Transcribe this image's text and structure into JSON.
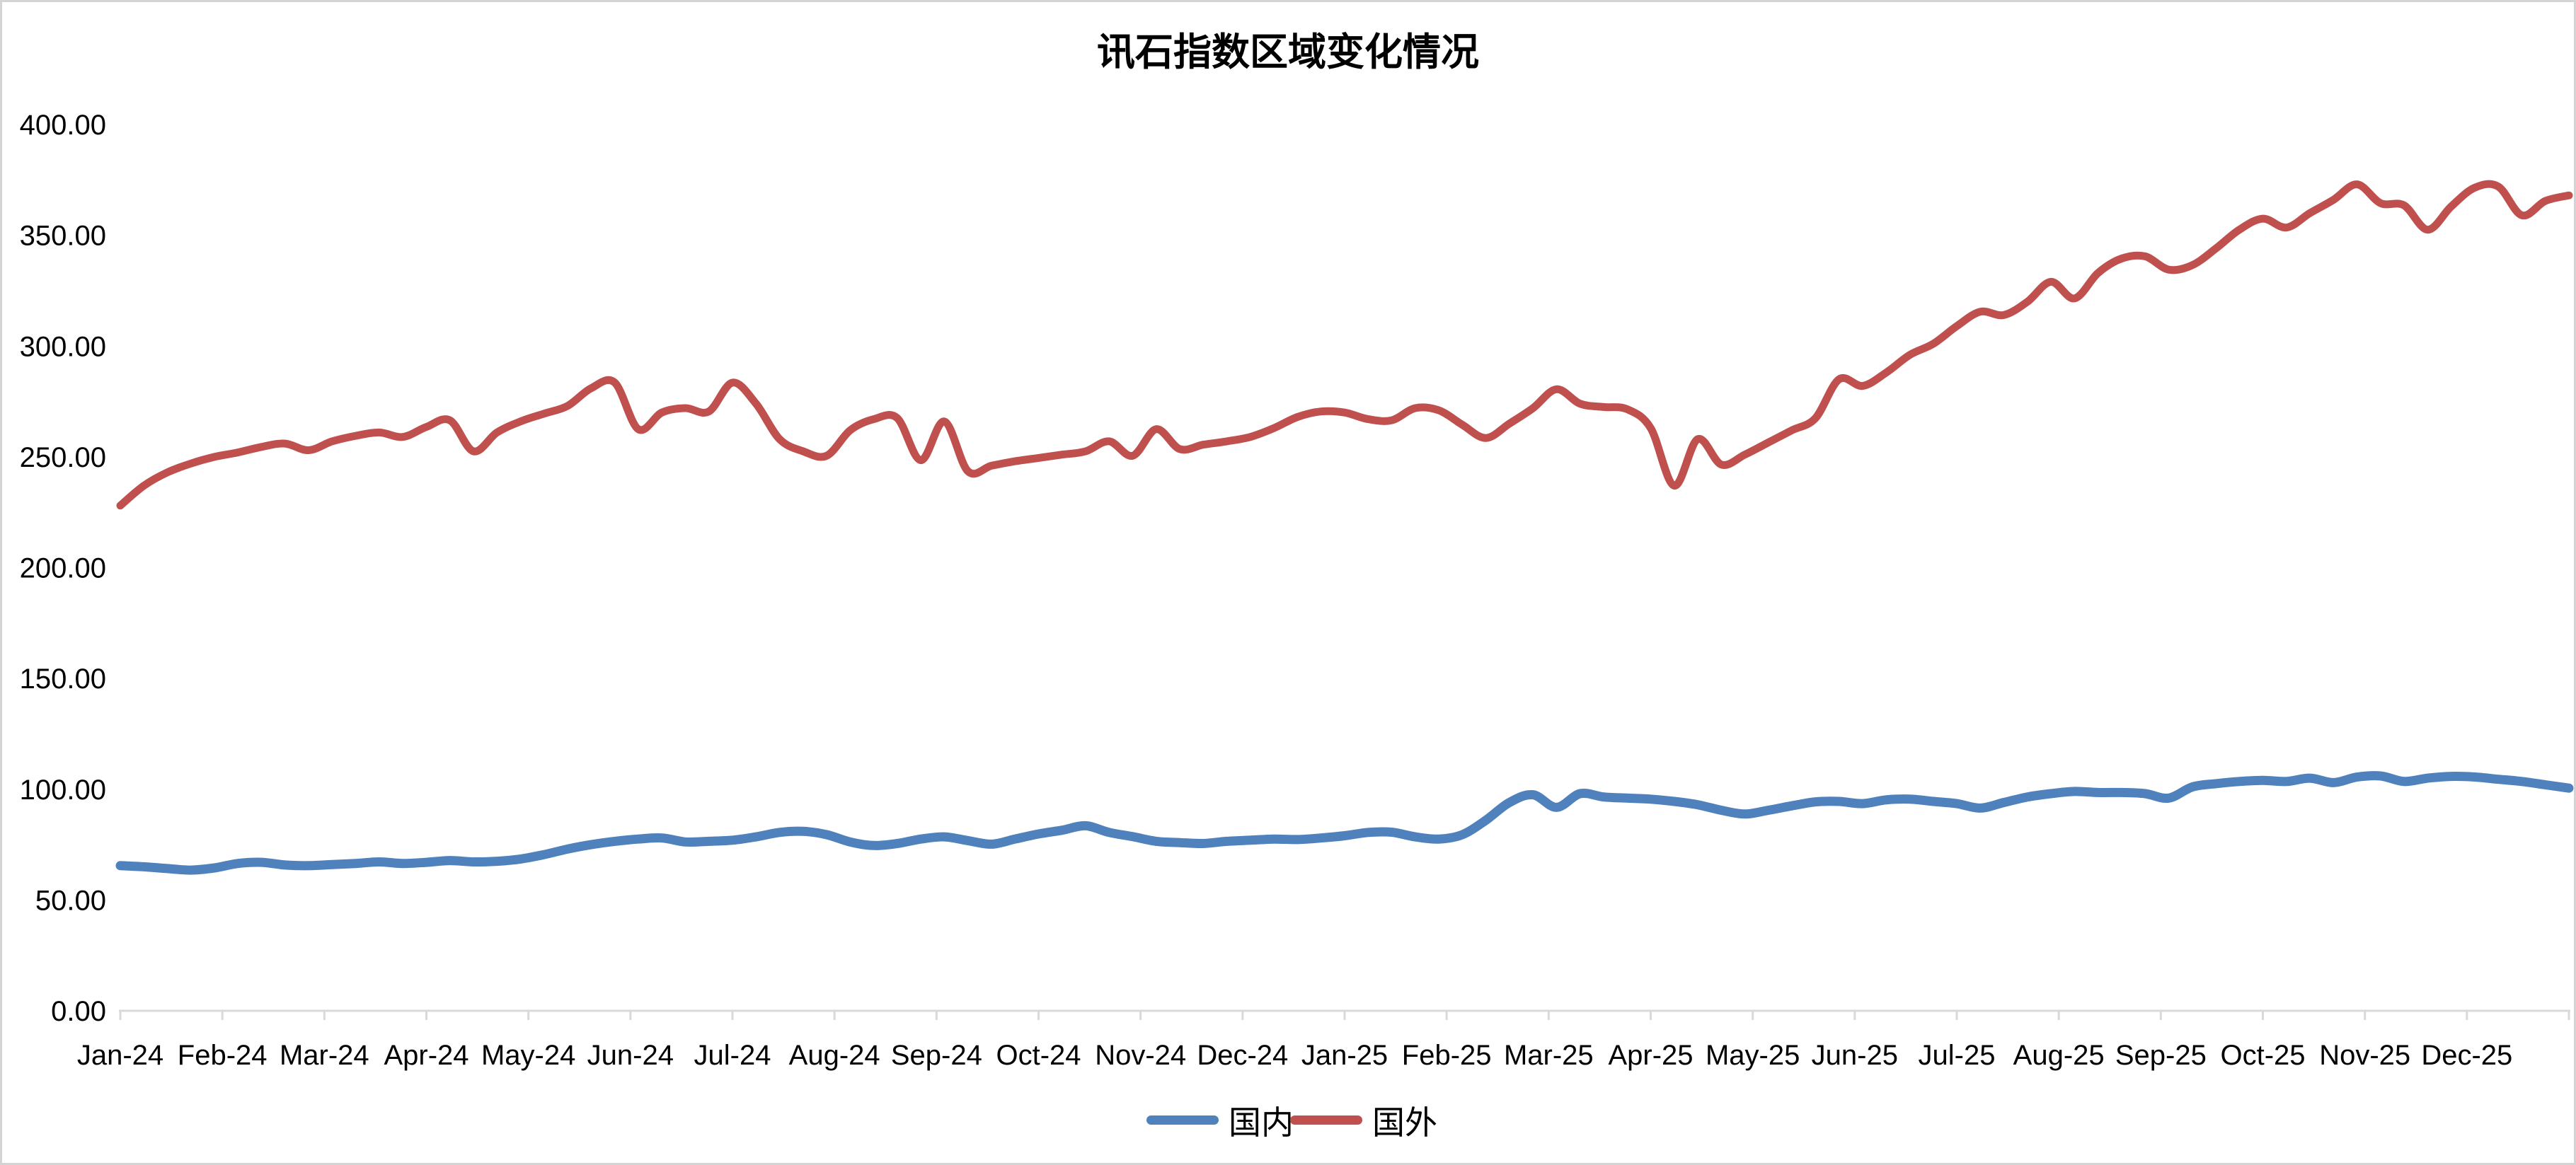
{
  "title": "讯石指数区域变化情况",
  "legend": {
    "domestic_label": "国内",
    "foreign_label": "国外"
  },
  "colors": {
    "domestic_line": "#4F81BD",
    "foreign_line": "#C0504D",
    "axis_line": "#D9D9D9",
    "text": "#000000",
    "border": "#D4D4D4",
    "background": "#FFFFFF"
  },
  "y_axis": {
    "labels": [
      "400.00",
      "350.00",
      "300.00",
      "250.00",
      "200.00",
      "150.00",
      "100.00",
      "50.00",
      "0.00"
    ],
    "min": 0,
    "max": 400,
    "step": 50
  },
  "x_axis": {
    "categories": [
      "Jan-24",
      "Feb-24",
      "Mar-24",
      "Apr-24",
      "May-24",
      "Jun-24",
      "Jul-24",
      "Aug-24",
      "Sep-24",
      "Oct-24",
      "Nov-24",
      "Dec-24",
      "Jan-25",
      "Feb-25",
      "Mar-25",
      "Apr-25",
      "May-25",
      "Jun-25",
      "Jul-25",
      "Aug-25",
      "Sep-25",
      "Oct-25",
      "Nov-25",
      "Dec-25"
    ]
  },
  "chart_data": {
    "type": "line",
    "smoothed": true,
    "title": "讯石指数区域变化情况",
    "xlabel": "",
    "ylabel": "",
    "ylim": [
      0,
      400
    ],
    "grid": false,
    "legend_position": "bottom-center",
    "x_categories": [
      "Jan-24",
      "Feb-24",
      "Mar-24",
      "Apr-24",
      "May-24",
      "Jun-24",
      "Jul-24",
      "Aug-24",
      "Sep-24",
      "Oct-24",
      "Nov-24",
      "Dec-24",
      "Jan-25",
      "Feb-25",
      "Mar-25",
      "Apr-25",
      "May-25",
      "Jun-25",
      "Jul-25",
      "Aug-25",
      "Sep-25",
      "Oct-25",
      "Nov-25",
      "Dec-25"
    ],
    "sampling": "weekly (105 points, Jan-24 through Dec-25, first point at left edge of plot)",
    "series": [
      {
        "name": "国内",
        "color": "#4F81BD",
        "stroke_width": 13,
        "values": [
          65.5,
          65,
          64.2,
          63.5,
          64.5,
          66.5,
          67,
          65.8,
          65.5,
          66,
          66.5,
          67.2,
          66.5,
          67,
          67.8,
          67.2,
          67.5,
          68.5,
          70.5,
          73,
          75,
          76.5,
          77.5,
          78,
          76.2,
          76.5,
          77,
          78.5,
          80.5,
          81,
          79.5,
          76.2,
          74.6,
          75.5,
          77.5,
          78.5,
          76.8,
          75.2,
          77.5,
          79.8,
          81.5,
          83.5,
          80.5,
          78.6,
          76.5,
          75.9,
          75.5,
          76.5,
          77,
          77.5,
          77.3,
          78,
          79,
          80.5,
          80.6,
          78.5,
          77.5,
          79.5,
          86,
          94,
          97.5,
          91.8,
          98,
          96.5,
          96,
          95.5,
          94.5,
          93,
          90.5,
          88.8,
          90.5,
          92.5,
          94.3,
          94.5,
          93.5,
          95.2,
          95.5,
          94.5,
          93.5,
          91.5,
          94,
          96.5,
          98,
          99,
          98.5,
          98.5,
          98,
          96,
          101,
          102.5,
          103.5,
          104,
          103.5,
          105,
          103,
          105.5,
          106,
          103.5,
          105,
          105.8,
          105.5,
          104.5,
          103.5,
          102,
          100.5
        ]
      },
      {
        "name": "国外",
        "color": "#C0504D",
        "stroke_width": 11,
        "values": [
          228,
          237,
          243,
          247,
          250,
          252,
          254.5,
          256,
          253,
          257,
          259.5,
          261,
          259,
          263.5,
          266.5,
          252.5,
          261,
          266,
          269.5,
          273,
          281,
          283.5,
          262.5,
          270,
          272,
          270.5,
          283.5,
          274,
          258,
          252.5,
          250.5,
          262,
          267,
          267.5,
          248.5,
          266,
          243.5,
          246,
          248,
          249.5,
          251,
          252.5,
          257,
          250.5,
          262.5,
          253.5,
          255.5,
          257,
          259,
          263,
          268,
          270.5,
          270,
          267,
          266.5,
          272,
          271,
          264.5,
          258.5,
          265,
          272,
          280.5,
          274,
          272.5,
          271.5,
          263,
          237,
          258,
          246.5,
          251,
          256.5,
          262,
          267.5,
          285,
          282,
          288,
          296,
          301,
          309,
          315.5,
          314,
          320,
          329,
          321.5,
          333,
          339.5,
          340.5,
          334.5,
          336.5,
          344,
          352.5,
          357.5,
          353.5,
          360,
          366,
          373,
          364.5,
          363.5,
          352.5,
          363,
          371.5,
          372,
          359,
          365.5,
          368
        ]
      }
    ]
  }
}
